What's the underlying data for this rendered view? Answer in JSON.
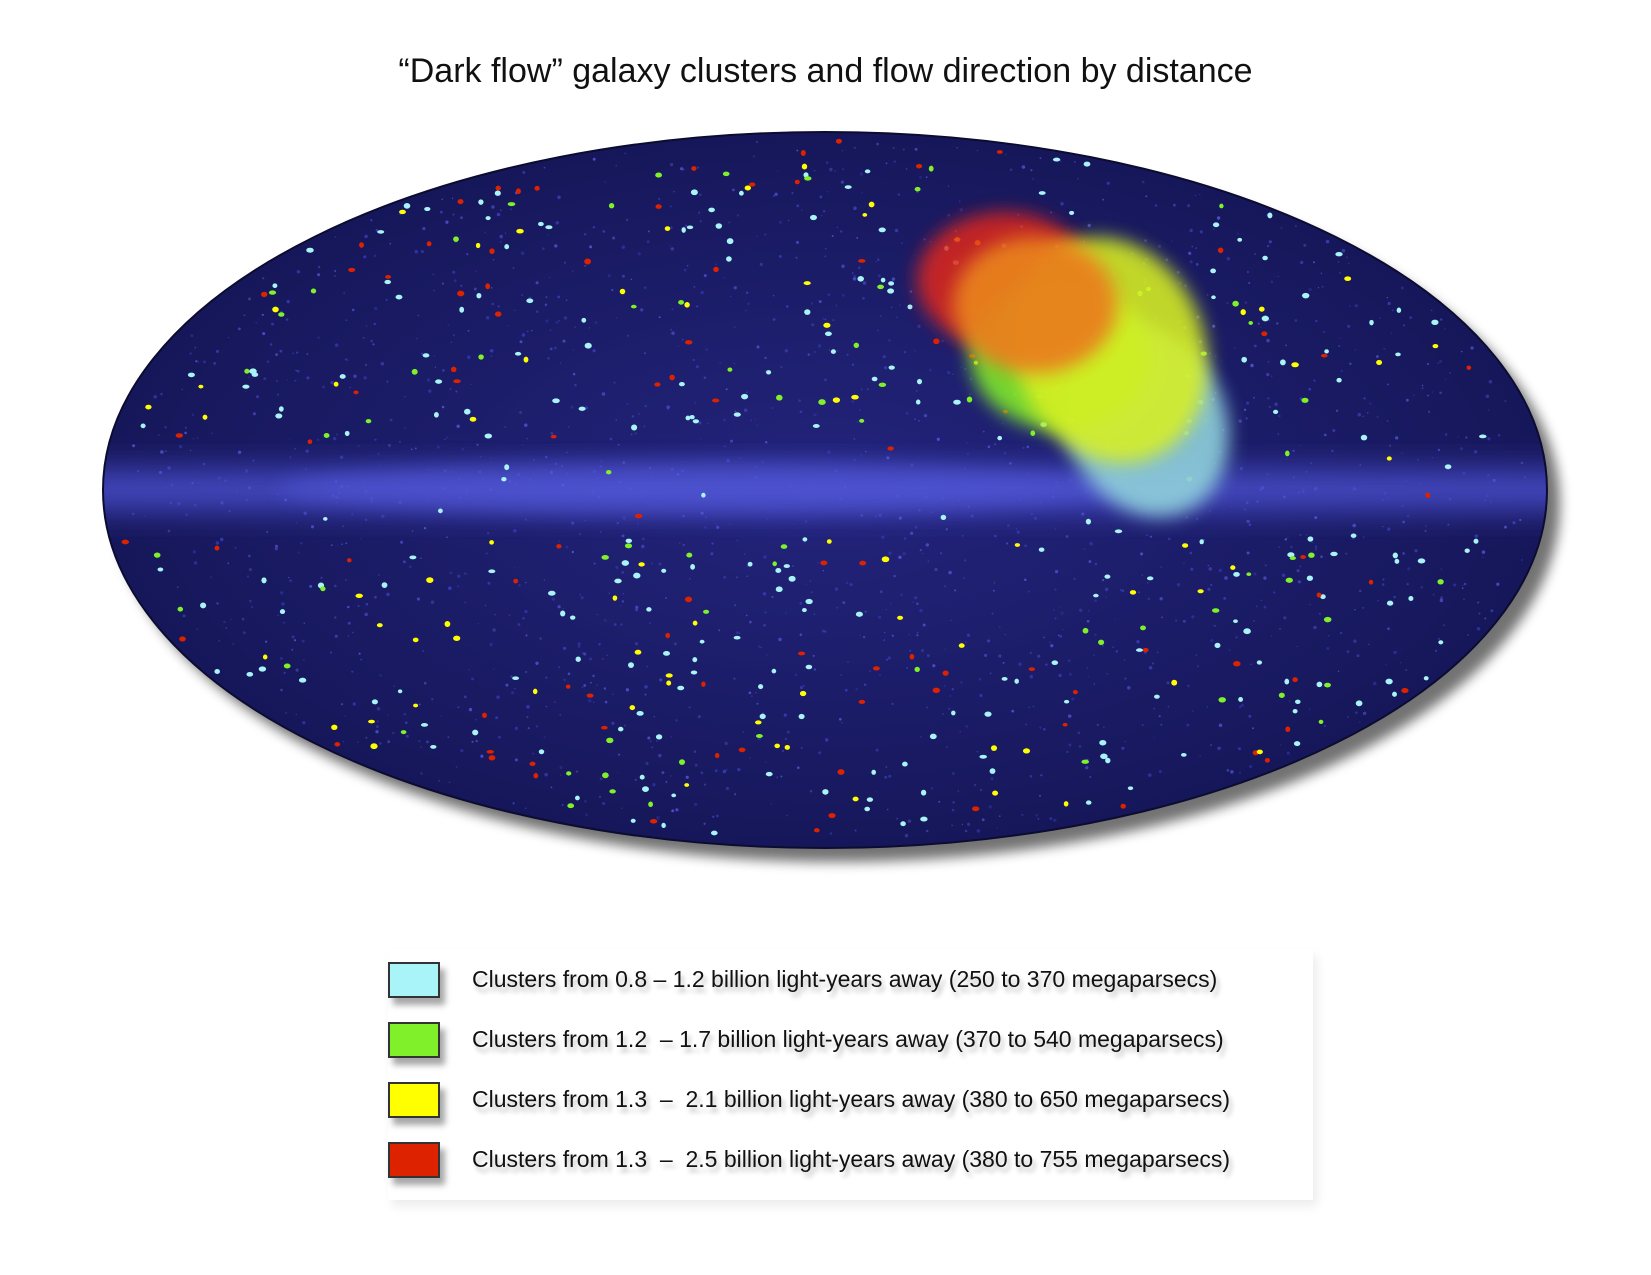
{
  "title": "“Dark flow” galaxy clusters and flow direction by distance",
  "colors": {
    "background": "#ffffff",
    "sky": "#1c1d6e",
    "milky_way_band": "#4448c8",
    "cluster_near": "#a9f4f8",
    "cluster_mid": "#7ff02a",
    "cluster_far": "#ffff00",
    "cluster_farthest": "#dd2200",
    "flow_near": "#8fd0dc",
    "flow_mid": "#7ee82c",
    "flow_far": "#d8f020",
    "flow_farthest": "#e0281e",
    "flow_overlap": "#e8801c"
  },
  "legend": {
    "items": [
      {
        "color": "#a9f4f8",
        "label": "Clusters from 0.8 – 1.2 billion light-years away (250 to 370 megaparsecs)"
      },
      {
        "color": "#7ff02a",
        "label": "Clusters from 1.2  – 1.7 billion light-years away (370 to 540 megaparsecs)"
      },
      {
        "color": "#ffff00",
        "label": "Clusters from 1.3  –  2.1 billion light-years away (380 to 650 megaparsecs)"
      },
      {
        "color": "#dd2200",
        "label": "Clusters from 1.3  –  2.5 billion light-years away (380 to 755 megaparsecs)"
      }
    ]
  }
}
